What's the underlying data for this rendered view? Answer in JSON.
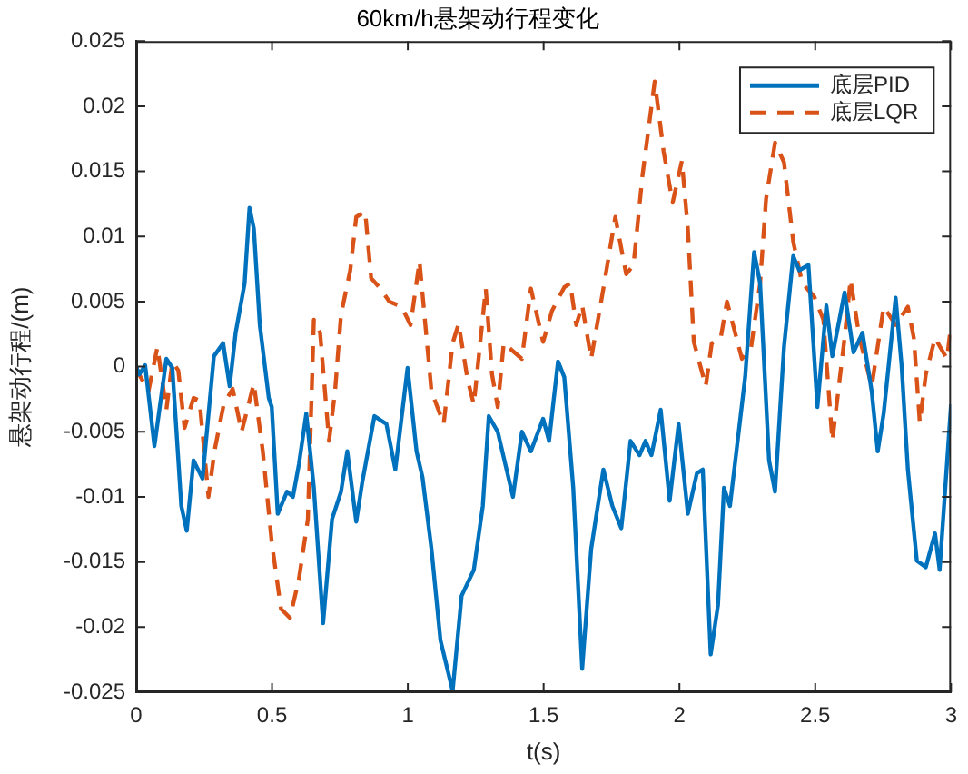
{
  "chart_data": {
    "type": "line",
    "title": "60km/h悬架动行程变化",
    "xlabel": "t(s)",
    "ylabel": "悬架动行程/(m)",
    "xlim": [
      0,
      3
    ],
    "xticks": [
      0,
      0.5,
      1,
      1.5,
      2,
      2.5,
      3
    ],
    "ylim": [
      -0.025,
      0.025
    ],
    "yticks": [
      -0.025,
      -0.02,
      -0.015,
      -0.01,
      -0.005,
      0,
      0.005,
      0.01,
      0.015,
      0.02,
      0.025
    ],
    "grid": false,
    "legend": "top right",
    "marker": "none",
    "series": [
      {
        "name": "底层PID",
        "color": "#0072bd",
        "line_style": "solid",
        "x": [
          0,
          0.011,
          0.033,
          0.067,
          0.111,
          0.133,
          0.166,
          0.186,
          0.211,
          0.244,
          0.286,
          0.32,
          0.344,
          0.366,
          0.399,
          0.417,
          0.433,
          0.455,
          0.488,
          0.499,
          0.521,
          0.555,
          0.577,
          0.599,
          0.626,
          0.654,
          0.688,
          0.721,
          0.754,
          0.777,
          0.81,
          0.832,
          0.877,
          0.921,
          0.954,
          0.999,
          1.032,
          1.054,
          1.087,
          1.12,
          1.165,
          1.198,
          1.243,
          1.276,
          1.298,
          1.331,
          1.387,
          1.42,
          1.453,
          1.498,
          1.52,
          1.553,
          1.576,
          1.609,
          1.642,
          1.675,
          1.72,
          1.753,
          1.786,
          1.82,
          1.853,
          1.875,
          1.897,
          1.931,
          1.964,
          1.997,
          2.031,
          2.064,
          2.086,
          2.115,
          2.142,
          2.164,
          2.186,
          2.242,
          2.275,
          2.297,
          2.33,
          2.352,
          2.385,
          2.419,
          2.441,
          2.475,
          2.508,
          2.541,
          2.563,
          2.608,
          2.641,
          2.674,
          2.708,
          2.73,
          2.752,
          2.796,
          2.818,
          2.841,
          2.874,
          2.907,
          2.941,
          2.958,
          3
        ],
        "values": [
          0,
          -0.0006,
          0.0001,
          -0.0061,
          0.0006,
          -0.0001,
          -0.0107,
          -0.0126,
          -0.0072,
          -0.0086,
          0.0008,
          0.0018,
          -0.0015,
          0.0026,
          0.0064,
          0.0122,
          0.0106,
          0.0032,
          -0.0024,
          -0.0031,
          -0.0113,
          -0.0096,
          -0.01,
          -0.0075,
          -0.0036,
          -0.0093,
          -0.0197,
          -0.0117,
          -0.0096,
          -0.0065,
          -0.0119,
          -0.0089,
          -0.0038,
          -0.0044,
          -0.0079,
          -0.0001,
          -0.0065,
          -0.0085,
          -0.014,
          -0.021,
          -0.0249,
          -0.0176,
          -0.0156,
          -0.0107,
          -0.0038,
          -0.005,
          -0.01,
          -0.005,
          -0.0065,
          -0.004,
          -0.0057,
          0.0004,
          -0.0008,
          -0.0093,
          -0.0232,
          -0.014,
          -0.0079,
          -0.0107,
          -0.0124,
          -0.0057,
          -0.0068,
          -0.0057,
          -0.0068,
          -0.0033,
          -0.0103,
          -0.0044,
          -0.0113,
          -0.0082,
          -0.0079,
          -0.0221,
          -0.0183,
          -0.0093,
          -0.0107,
          -0.0008,
          0.0088,
          0.0064,
          -0.0072,
          -0.0096,
          0.0015,
          0.0085,
          0.0074,
          0.0078,
          -0.0031,
          0.0047,
          0.0008,
          0.0057,
          0.0011,
          0.0026,
          -0.0019,
          -0.0065,
          -0.0036,
          0.0053,
          0.0001,
          -0.0079,
          -0.0149,
          -0.0154,
          -0.0128,
          -0.0156,
          -0.0029
        ]
      },
      {
        "name": "底层LQR",
        "color": "#d95319",
        "line_style": "dashed",
        "x": [
          0,
          0.011,
          0.045,
          0.078,
          0.111,
          0.133,
          0.155,
          0.178,
          0.211,
          0.233,
          0.266,
          0.288,
          0.322,
          0.355,
          0.388,
          0.433,
          0.466,
          0.499,
          0.533,
          0.566,
          0.599,
          0.632,
          0.654,
          0.677,
          0.71,
          0.732,
          0.754,
          0.788,
          0.81,
          0.843,
          0.865,
          0.899,
          0.932,
          0.977,
          1.01,
          1.043,
          1.087,
          1.132,
          1.165,
          1.187,
          1.22,
          1.243,
          1.287,
          1.31,
          1.331,
          1.353,
          1.42,
          1.453,
          1.498,
          1.531,
          1.576,
          1.598,
          1.62,
          1.642,
          1.675,
          1.72,
          1.764,
          1.804,
          1.831,
          1.864,
          1.909,
          1.942,
          1.975,
          2.009,
          2.031,
          2.053,
          2.097,
          2.119,
          2.152,
          2.175,
          2.23,
          2.264,
          2.297,
          2.319,
          2.352,
          2.385,
          2.419,
          2.452,
          2.496,
          2.53,
          2.563,
          2.608,
          2.63,
          2.663,
          2.708,
          2.752,
          2.796,
          2.841,
          2.863,
          2.885,
          2.907,
          2.941,
          2.985,
          3
        ],
        "values": [
          0,
          -0.0006,
          -0.0019,
          0.0015,
          -0.0033,
          0.0004,
          -0.0003,
          -0.0047,
          -0.0024,
          -0.0026,
          -0.01,
          -0.0065,
          -0.0029,
          -0.0017,
          -0.005,
          -0.0013,
          -0.0065,
          -0.0135,
          -0.0186,
          -0.0193,
          -0.0163,
          -0.0117,
          0.0036,
          0.0026,
          -0.0057,
          -0.0019,
          0.004,
          0.0074,
          0.0115,
          0.0119,
          0.0068,
          0.006,
          0.005,
          0.0046,
          0.0032,
          0.0081,
          -0.0019,
          -0.0044,
          0.0018,
          0.0033,
          -0.001,
          -0.0029,
          0.006,
          -0.0006,
          -0.0031,
          0.0018,
          0.0006,
          0.006,
          0.0019,
          0.0043,
          0.0061,
          0.0064,
          0.0032,
          0.0047,
          0.0006,
          0.006,
          0.0115,
          0.0071,
          0.0078,
          0.0147,
          0.0219,
          0.0165,
          0.0126,
          0.0158,
          0.0106,
          0.0019,
          -0.0015,
          0.0018,
          0.0022,
          0.005,
          0.0006,
          0.0015,
          0.0064,
          0.0129,
          0.0172,
          0.0157,
          0.0096,
          0.0064,
          0.0054,
          0.0036,
          -0.0057,
          0.0022,
          0.0067,
          0.0022,
          -0.0015,
          0.0046,
          0.0032,
          0.0046,
          0.0022,
          -0.0043,
          -0.0006,
          0.0022,
          0.0006,
          0.0032
        ]
      }
    ]
  }
}
